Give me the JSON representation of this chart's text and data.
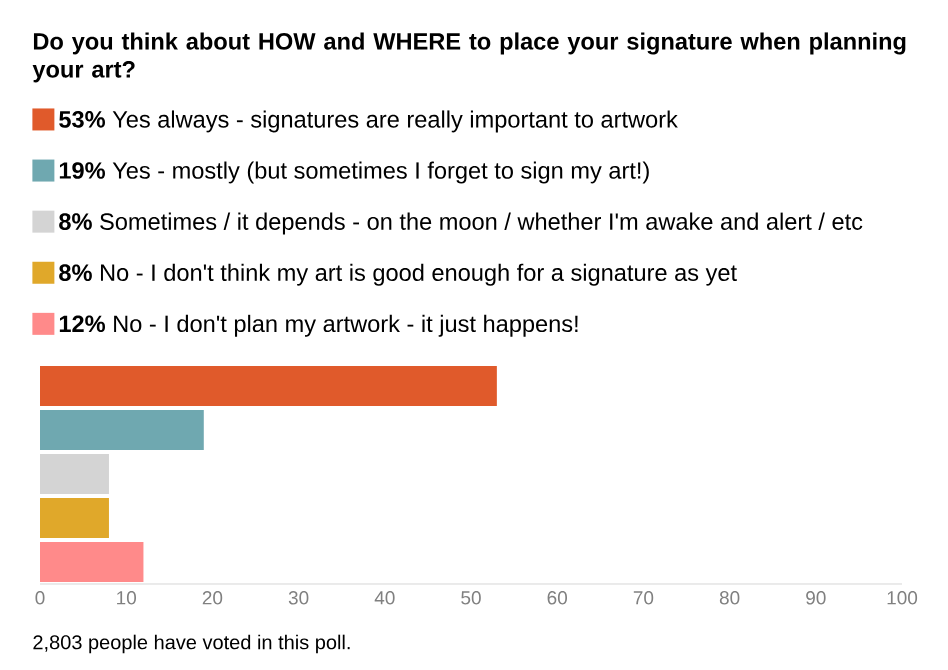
{
  "chart_data": {
    "type": "bar",
    "orientation": "horizontal",
    "title": "Do you think about HOW and WHERE to place your signature when planning your art?",
    "categories": [
      null
    ],
    "series": [
      {
        "name": "**53%** Yes always - signatures are really important to artwork",
        "color": "#e05a2b",
        "values": [
          53
        ]
      },
      {
        "name": "**19%** Yes - mostly (but sometimes I forget to sign my art!)",
        "color": "#6fa8b0",
        "values": [
          19
        ]
      },
      {
        "name": "**8%** Sometimes / it depends - on the moon / whether I'm awake and alert / etc",
        "color": "#d4d4d4",
        "values": [
          8
        ]
      },
      {
        "name": "**8%** No - I don't think my art is good enough for a signature as yet",
        "color": "#e0a82a",
        "values": [
          8
        ]
      },
      {
        "name": "**12%** No - I don't plan my artwork - it just happens!",
        "color": "#ff8a8a",
        "values": [
          12
        ]
      }
    ],
    "xlim": [
      0,
      100
    ],
    "xticks": [
      0,
      10,
      20,
      30,
      40,
      50,
      60,
      70,
      80,
      90,
      100
    ],
    "legend": "top",
    "grid": false,
    "annotations": [
      "2,803 people have voted in this poll."
    ]
  }
}
